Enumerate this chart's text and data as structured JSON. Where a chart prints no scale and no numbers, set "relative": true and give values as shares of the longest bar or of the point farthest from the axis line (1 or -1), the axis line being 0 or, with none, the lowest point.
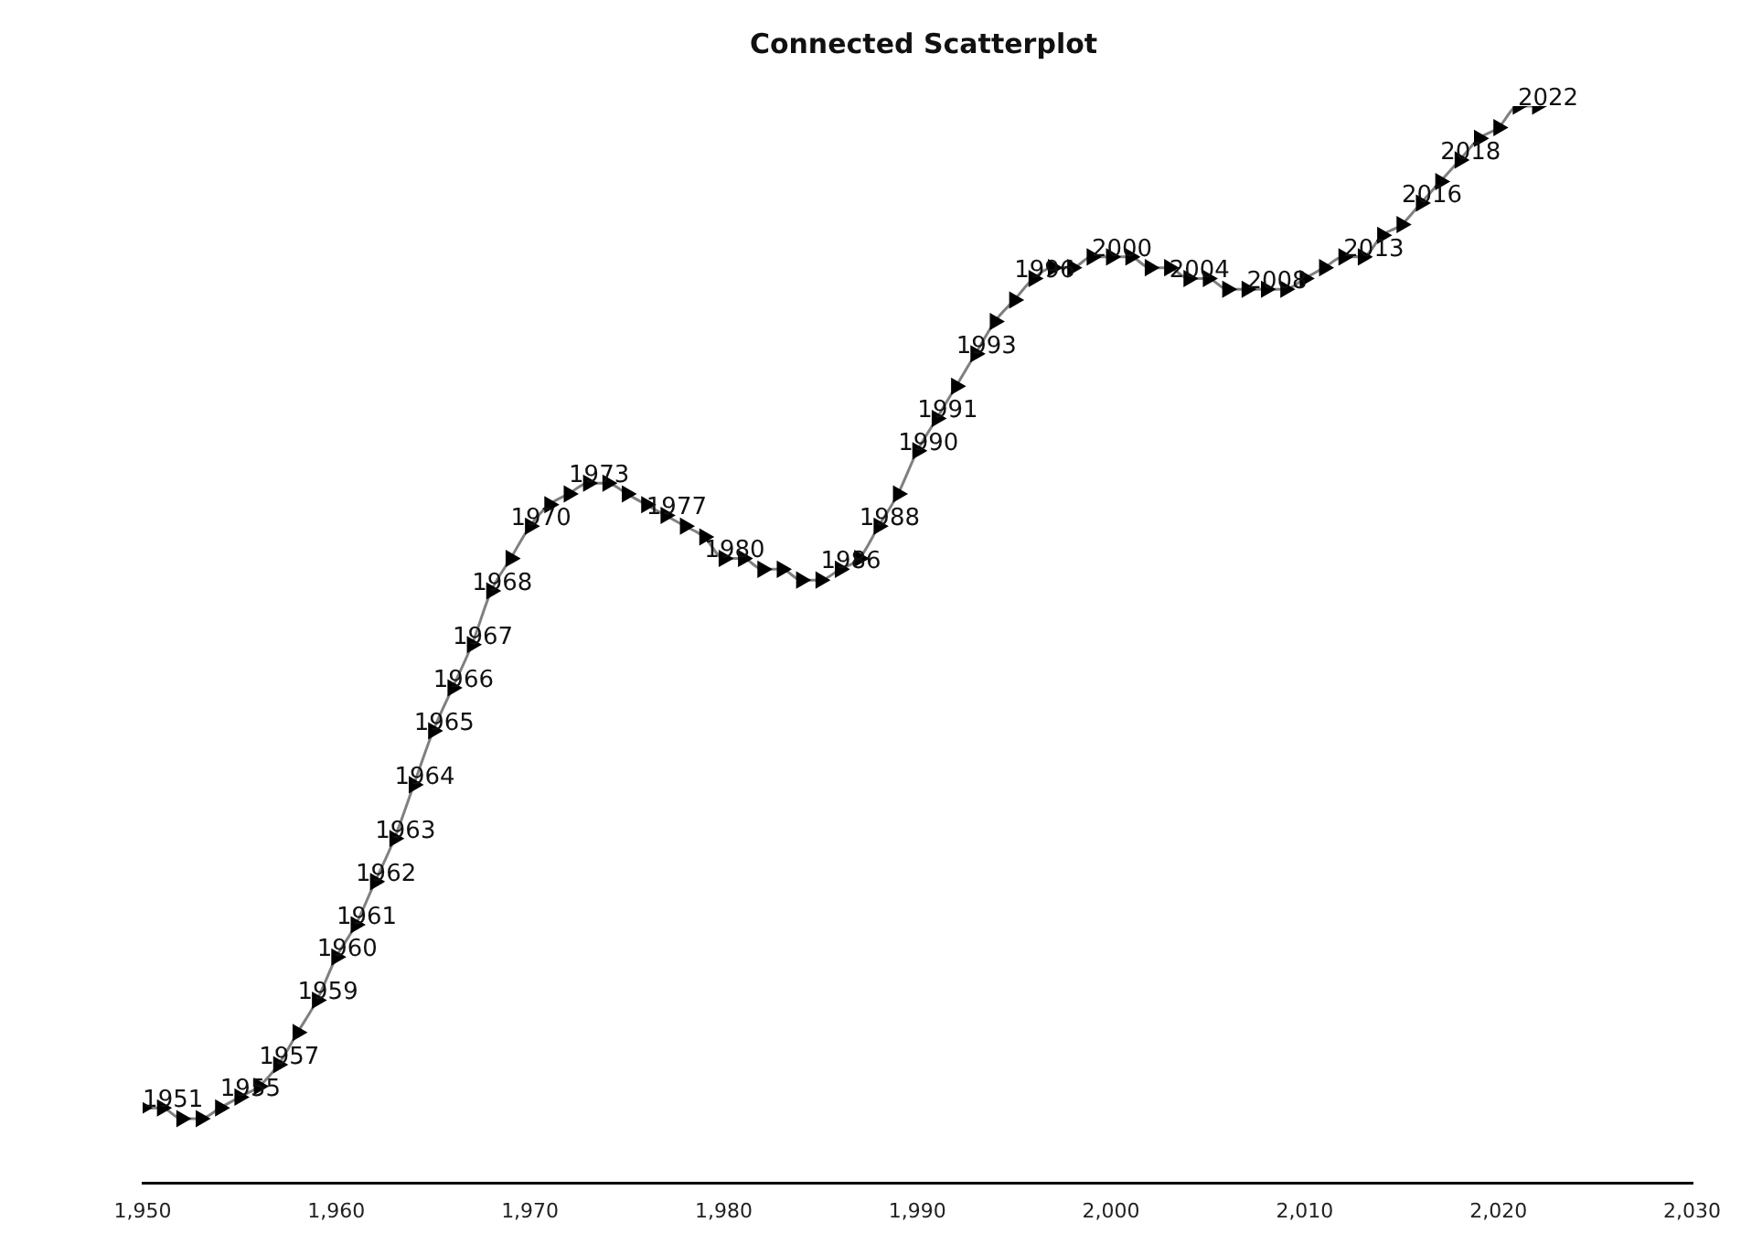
{
  "chart_data": {
    "type": "line",
    "title": "Connected Scatterplot",
    "relative": true,
    "marker": "triangle",
    "line_style": "solid",
    "grid": false,
    "legend": false,
    "xlim": [
      1950,
      2030
    ],
    "xticks": [
      {
        "value": 1950,
        "label": "1,950"
      },
      {
        "value": 1960,
        "label": "1,960"
      },
      {
        "value": 1970,
        "label": "1,970"
      },
      {
        "value": 1980,
        "label": "1,980"
      },
      {
        "value": 1990,
        "label": "1,990"
      },
      {
        "value": 2000,
        "label": "2,000"
      },
      {
        "value": 2010,
        "label": "2,010"
      },
      {
        "value": 2020,
        "label": "2,020"
      },
      {
        "value": 2030,
        "label": "2,030"
      }
    ],
    "x": [
      1950,
      1951,
      1952,
      1953,
      1954,
      1955,
      1956,
      1957,
      1958,
      1959,
      1960,
      1961,
      1962,
      1963,
      1964,
      1965,
      1966,
      1967,
      1968,
      1969,
      1970,
      1971,
      1972,
      1973,
      1974,
      1975,
      1976,
      1977,
      1978,
      1979,
      1980,
      1981,
      1982,
      1983,
      1984,
      1985,
      1986,
      1987,
      1988,
      1989,
      1990,
      1991,
      1992,
      1993,
      1994,
      1995,
      1996,
      1997,
      1998,
      1999,
      2000,
      2001,
      2002,
      2003,
      2004,
      2005,
      2006,
      2007,
      2008,
      2009,
      2010,
      2011,
      2012,
      2013,
      2014,
      2015,
      2016,
      2017,
      2018,
      2019,
      2020,
      2021,
      2022
    ],
    "series": [
      {
        "color": "#808080",
        "values": [
          0.07,
          0.07,
          0.06,
          0.06,
          0.07,
          0.08,
          0.09,
          0.11,
          0.14,
          0.17,
          0.21,
          0.24,
          0.28,
          0.32,
          0.37,
          0.42,
          0.46,
          0.5,
          0.55,
          0.58,
          0.61,
          0.63,
          0.64,
          0.65,
          0.65,
          0.64,
          0.63,
          0.62,
          0.61,
          0.6,
          0.58,
          0.58,
          0.57,
          0.57,
          0.56,
          0.56,
          0.57,
          0.58,
          0.61,
          0.64,
          0.68,
          0.71,
          0.74,
          0.77,
          0.8,
          0.82,
          0.84,
          0.85,
          0.85,
          0.86,
          0.86,
          0.86,
          0.85,
          0.85,
          0.84,
          0.84,
          0.83,
          0.83,
          0.83,
          0.83,
          0.84,
          0.85,
          0.86,
          0.86,
          0.88,
          0.89,
          0.91,
          0.93,
          0.95,
          0.97,
          0.98,
          1,
          1
        ]
      }
    ],
    "annotations": [
      {
        "text": "1951",
        "x": 1951,
        "y": 0.07
      },
      {
        "text": "1955",
        "x": 1955,
        "y": 0.08
      },
      {
        "text": "1957",
        "x": 1957,
        "y": 0.11
      },
      {
        "text": "1959",
        "x": 1959,
        "y": 0.17
      },
      {
        "text": "1960",
        "x": 1960,
        "y": 0.21
      },
      {
        "text": "1961",
        "x": 1961,
        "y": 0.24
      },
      {
        "text": "1962",
        "x": 1962,
        "y": 0.28
      },
      {
        "text": "1963",
        "x": 1963,
        "y": 0.32
      },
      {
        "text": "1964",
        "x": 1964,
        "y": 0.37
      },
      {
        "text": "1965",
        "x": 1965,
        "y": 0.42
      },
      {
        "text": "1966",
        "x": 1966,
        "y": 0.46
      },
      {
        "text": "1967",
        "x": 1967,
        "y": 0.5
      },
      {
        "text": "1968",
        "x": 1968,
        "y": 0.55
      },
      {
        "text": "1970",
        "x": 1970,
        "y": 0.61
      },
      {
        "text": "1973",
        "x": 1973,
        "y": 0.65
      },
      {
        "text": "1977",
        "x": 1977,
        "y": 0.62
      },
      {
        "text": "1980",
        "x": 1980,
        "y": 0.58
      },
      {
        "text": "1986",
        "x": 1986,
        "y": 0.57
      },
      {
        "text": "1988",
        "x": 1988,
        "y": 0.61
      },
      {
        "text": "1990",
        "x": 1990,
        "y": 0.68
      },
      {
        "text": "1991",
        "x": 1991,
        "y": 0.71
      },
      {
        "text": "1993",
        "x": 1993,
        "y": 0.77
      },
      {
        "text": "1996",
        "x": 1996,
        "y": 0.84
      },
      {
        "text": "2000",
        "x": 2000,
        "y": 0.86
      },
      {
        "text": "2004",
        "x": 2004,
        "y": 0.84
      },
      {
        "text": "2008",
        "x": 2008,
        "y": 0.83
      },
      {
        "text": "2013",
        "x": 2013,
        "y": 0.86
      },
      {
        "text": "2016",
        "x": 2016,
        "y": 0.91
      },
      {
        "text": "2018",
        "x": 2018,
        "y": 0.95
      },
      {
        "text": "2022",
        "x": 2022,
        "y": 1
      }
    ]
  }
}
